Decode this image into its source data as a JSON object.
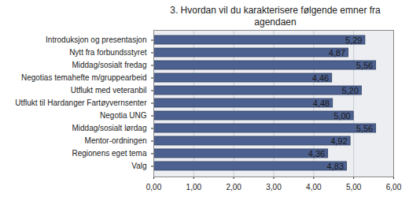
{
  "chart_data": {
    "type": "bar",
    "orientation": "horizontal",
    "title": "3. Hvordan vil du karakterisere følgende emner fra agendaen",
    "categories": [
      "Introduksjon og presentasjon",
      "Nytt fra forbundsstyret",
      "Middag/sosialt fredag",
      "Negotias temahefte m/gruppearbeid",
      "Utflukt med veteranbil",
      "Utflukt til Hardanger Fartøyvernsenter",
      "Negotia UNG",
      "Middag/sosialt lørdag",
      "Mentor-ordningen",
      "Regionens eget tema",
      "Valg"
    ],
    "values": [
      5.29,
      4.87,
      5.56,
      4.46,
      5.2,
      4.48,
      5.0,
      5.56,
      4.92,
      4.36,
      4.83
    ],
    "value_labels": [
      "5,29",
      "4,87",
      "5,56",
      "4,46",
      "5,20",
      "4,48",
      "5,00",
      "5,56",
      "4,92",
      "4,36",
      "4,83"
    ],
    "data_labels": true,
    "color": "#4d6190",
    "xlim": [
      0,
      6
    ],
    "xticks": [
      {
        "value": 0,
        "label": "0,00"
      },
      {
        "value": 1,
        "label": "1,00"
      },
      {
        "value": 2,
        "label": "2,00"
      },
      {
        "value": 3,
        "label": "3,00"
      },
      {
        "value": 4,
        "label": "4,00"
      },
      {
        "value": 5,
        "label": "5,00"
      },
      {
        "value": 6,
        "label": "6,00"
      }
    ],
    "grid": true
  }
}
